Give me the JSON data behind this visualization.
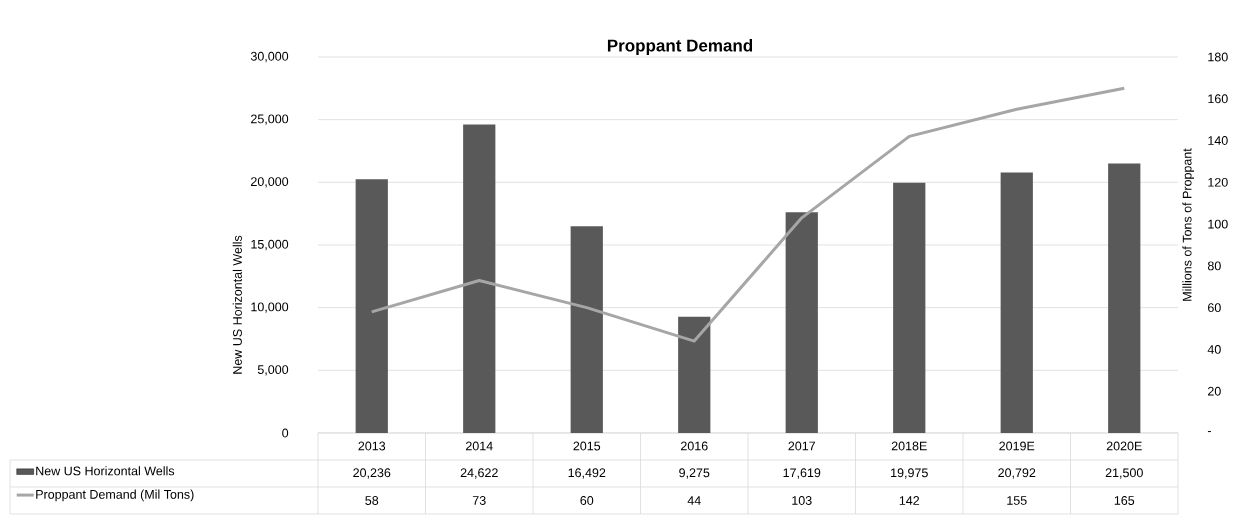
{
  "chart_data": {
    "type": "bar",
    "title": "Proppant Demand",
    "ylabel": "New US Horizontal Wells",
    "y2label": "Millions of Tons of Proppant",
    "categories": [
      "2013",
      "2014",
      "2015",
      "2016",
      "2017",
      "2018E",
      "2019E",
      "2020E"
    ],
    "series": [
      {
        "name": "New US Horizontal Wells",
        "type": "bar",
        "color": "#595959",
        "values": [
          20236,
          24622,
          16492,
          9275,
          17619,
          19975,
          20792,
          21500
        ],
        "value_labels": [
          "20,236",
          "24,622",
          "16,492",
          "9,275",
          "17,619",
          "19,975",
          "20,792",
          "21,500"
        ]
      },
      {
        "name": "Proppant Demand (Mil Tons)",
        "type": "line",
        "axis": "y2",
        "color": "#a6a6a6",
        "values": [
          58,
          73,
          60,
          44,
          103,
          142,
          155,
          165
        ]
      }
    ],
    "ylim": [
      0,
      30000
    ],
    "yticks": [
      0,
      {
        "value": 5000,
        "label": "5,000"
      },
      {
        "value": 10000,
        "label": "10,000"
      },
      {
        "value": 15000,
        "label": "15,000"
      },
      {
        "value": 20000,
        "label": "20,000"
      },
      {
        "value": 25000,
        "label": "25,000"
      },
      {
        "value": 30000,
        "label": "30,000"
      }
    ],
    "y2lim": [
      0,
      180
    ],
    "y2ticks": [
      {
        "value": 0,
        "label": "-"
      },
      20,
      40,
      60,
      80,
      100,
      120,
      140,
      160,
      180
    ],
    "grid": "y",
    "legend": "bottom",
    "data_labels": true
  }
}
